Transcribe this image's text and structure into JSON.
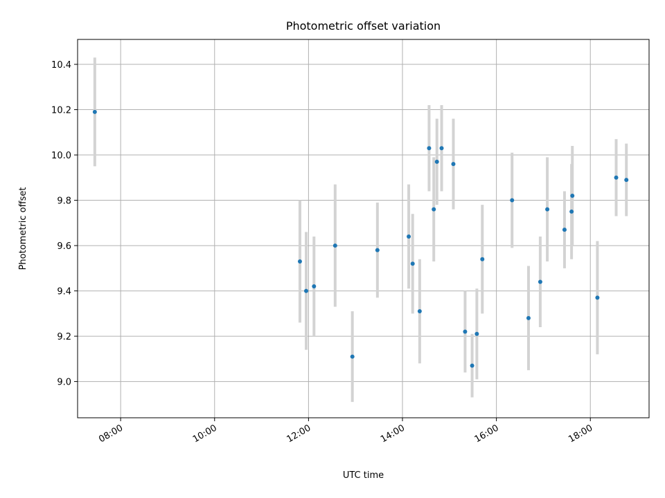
{
  "chart_data": {
    "type": "scatter",
    "title": "Photometric offset variation",
    "xlabel": "UTC time",
    "ylabel": "Photometric offset",
    "x_unit": "time of day (HH:MM, UTC)",
    "xlim": [
      "07:05",
      "19:15"
    ],
    "ylim": [
      8.84,
      10.51
    ],
    "x_ticks": [
      "08:00",
      "10:00",
      "12:00",
      "14:00",
      "16:00",
      "18:00"
    ],
    "y_ticks": [
      9.0,
      9.2,
      9.4,
      9.6,
      9.8,
      10.0,
      10.2,
      10.4
    ],
    "grid": true,
    "marker_color": "#1f77b4",
    "errorbar_color": "#d3d3d3",
    "points": [
      {
        "time": "07:27",
        "y": 10.19,
        "err": 0.24
      },
      {
        "time": "11:49",
        "y": 9.53,
        "err": 0.27
      },
      {
        "time": "11:57",
        "y": 9.4,
        "err": 0.26
      },
      {
        "time": "12:07",
        "y": 9.42,
        "err": 0.22
      },
      {
        "time": "12:34",
        "y": 9.6,
        "err": 0.27
      },
      {
        "time": "12:56",
        "y": 9.11,
        "err": 0.2
      },
      {
        "time": "13:28",
        "y": 9.58,
        "err": 0.21
      },
      {
        "time": "14:08",
        "y": 9.64,
        "err": 0.23
      },
      {
        "time": "14:13",
        "y": 9.52,
        "err": 0.22
      },
      {
        "time": "14:22",
        "y": 9.31,
        "err": 0.23
      },
      {
        "time": "14:34",
        "y": 10.03,
        "err": 0.19
      },
      {
        "time": "14:40",
        "y": 9.76,
        "err": 0.23
      },
      {
        "time": "14:44",
        "y": 9.97,
        "err": 0.19
      },
      {
        "time": "14:50",
        "y": 10.03,
        "err": 0.19
      },
      {
        "time": "15:05",
        "y": 9.96,
        "err": 0.2
      },
      {
        "time": "15:20",
        "y": 9.22,
        "err": 0.18
      },
      {
        "time": "15:29",
        "y": 9.07,
        "err": 0.14
      },
      {
        "time": "15:35",
        "y": 9.21,
        "err": 0.2
      },
      {
        "time": "15:42",
        "y": 9.54,
        "err": 0.24
      },
      {
        "time": "16:20",
        "y": 9.8,
        "err": 0.21
      },
      {
        "time": "16:41",
        "y": 9.28,
        "err": 0.23
      },
      {
        "time": "16:56",
        "y": 9.44,
        "err": 0.2
      },
      {
        "time": "17:05",
        "y": 9.76,
        "err": 0.23
      },
      {
        "time": "17:27",
        "y": 9.67,
        "err": 0.17
      },
      {
        "time": "17:36",
        "y": 9.75,
        "err": 0.21
      },
      {
        "time": "17:37",
        "y": 9.82,
        "err": 0.22
      },
      {
        "time": "18:09",
        "y": 9.37,
        "err": 0.25
      },
      {
        "time": "18:33",
        "y": 9.9,
        "err": 0.17
      },
      {
        "time": "18:46",
        "y": 9.89,
        "err": 0.16
      }
    ]
  }
}
